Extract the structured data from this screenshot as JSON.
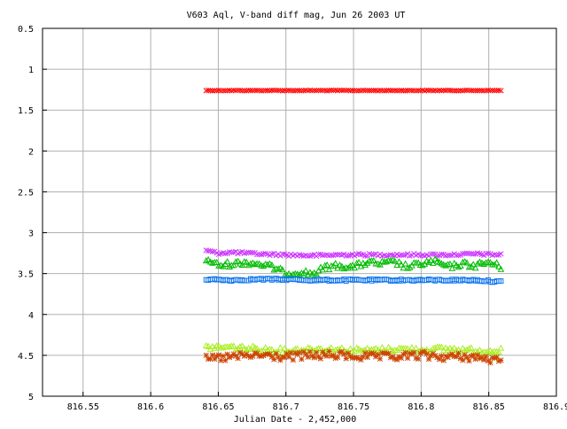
{
  "chart_data": {
    "type": "scatter",
    "title": "V603 Aql, V-band diff mag, Jun 26 2003 UT",
    "xlabel": "Julian Date - 2,452,000",
    "ylabel": "",
    "xlim": [
      816.52,
      816.9
    ],
    "ylim": [
      0.5,
      5
    ],
    "y_inverted": true,
    "grid": true,
    "legend": "none",
    "x_ticks": [
      "816.55",
      "816.6",
      "816.65",
      "816.7",
      "816.75",
      "816.8",
      "816.85",
      "816.9"
    ],
    "y_ticks": [
      "0.5",
      "1",
      "1.5",
      "2",
      "2.5",
      "3",
      "3.5",
      "4",
      "4.5",
      "5"
    ],
    "x_range_observed": [
      816.641,
      816.859
    ],
    "series": [
      {
        "color": "#ff0000",
        "marker": "x",
        "values_x": [
          816.641,
          816.66,
          816.68,
          816.7,
          816.72,
          816.74,
          816.76,
          816.78,
          816.8,
          816.82,
          816.84,
          816.859
        ],
        "values_y": [
          1.26,
          1.26,
          1.26,
          1.26,
          1.26,
          1.26,
          1.26,
          1.26,
          1.26,
          1.26,
          1.26,
          1.26
        ]
      },
      {
        "color": "#cc33ff",
        "marker": "x",
        "values_x": [
          816.641,
          816.65,
          816.66,
          816.68,
          816.7,
          816.72,
          816.74,
          816.76,
          816.78,
          816.8,
          816.82,
          816.84,
          816.859
        ],
        "values_y": [
          3.22,
          3.25,
          3.24,
          3.26,
          3.27,
          3.28,
          3.27,
          3.27,
          3.27,
          3.27,
          3.27,
          3.26,
          3.27
        ]
      },
      {
        "color": "#00bb00",
        "marker": "triangle",
        "values_x": [
          816.641,
          816.65,
          816.66,
          816.67,
          816.68,
          816.69,
          816.7,
          816.71,
          816.72,
          816.73,
          816.74,
          816.75,
          816.76,
          816.77,
          816.78,
          816.79,
          816.8,
          816.81,
          816.82,
          816.83,
          816.84,
          816.85,
          816.859
        ],
        "values_y": [
          3.32,
          3.4,
          3.38,
          3.36,
          3.38,
          3.42,
          3.5,
          3.48,
          3.5,
          3.42,
          3.4,
          3.42,
          3.36,
          3.38,
          3.36,
          3.42,
          3.38,
          3.35,
          3.42,
          3.38,
          3.4,
          3.36,
          3.42
        ]
      },
      {
        "color": "#1177ee",
        "marker": "square",
        "values_x": [
          816.641,
          816.66,
          816.68,
          816.7,
          816.72,
          816.74,
          816.76,
          816.78,
          816.8,
          816.82,
          816.84,
          816.859
        ],
        "values_y": [
          3.57,
          3.58,
          3.57,
          3.57,
          3.58,
          3.58,
          3.58,
          3.58,
          3.58,
          3.58,
          3.58,
          3.6
        ]
      },
      {
        "color": "#aaee22",
        "marker": "triangle",
        "values_x": [
          816.641,
          816.66,
          816.68,
          816.7,
          816.72,
          816.74,
          816.76,
          816.78,
          816.8,
          816.82,
          816.84,
          816.859
        ],
        "values_y": [
          4.4,
          4.4,
          4.42,
          4.44,
          4.42,
          4.43,
          4.44,
          4.42,
          4.43,
          4.42,
          4.44,
          4.44
        ]
      },
      {
        "color": "#cc4400",
        "marker": "star",
        "values_x": [
          816.641,
          816.66,
          816.68,
          816.7,
          816.72,
          816.74,
          816.76,
          816.78,
          816.8,
          816.82,
          816.84,
          816.859
        ],
        "values_y": [
          4.55,
          4.52,
          4.5,
          4.52,
          4.5,
          4.5,
          4.52,
          4.52,
          4.5,
          4.52,
          4.52,
          4.58
        ]
      }
    ]
  }
}
